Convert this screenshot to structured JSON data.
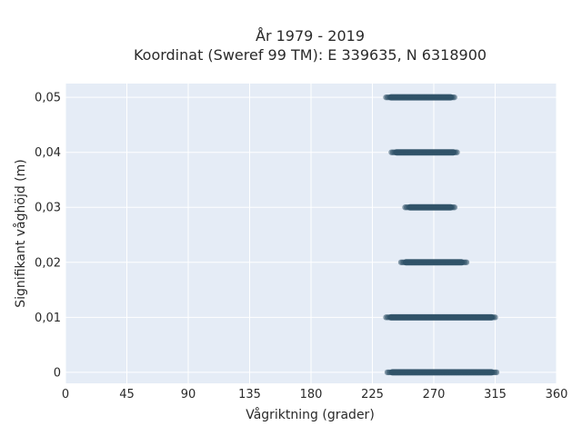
{
  "chart_data": {
    "type": "scatter",
    "title_line1": "År 1979 - 2019",
    "title_line2": "Koordinat (Sweref 99 TM): E 339635, N 6318900",
    "xlabel": "Vågriktning (grader)",
    "ylabel": "Signifikant våghöjd (m)",
    "xlim": [
      0,
      360
    ],
    "ylim": [
      -0.002,
      0.0525
    ],
    "xticks": [
      0,
      45,
      90,
      135,
      180,
      225,
      270,
      315,
      360
    ],
    "xtick_labels": [
      "0",
      "45",
      "90",
      "135",
      "180",
      "225",
      "270",
      "315",
      "360"
    ],
    "yticks": [
      0,
      0.01,
      0.02,
      0.03,
      0.04,
      0.05
    ],
    "ytick_labels": [
      "0",
      "0,01",
      "0,02",
      "0,03",
      "0,04",
      "0,05"
    ],
    "grid": true,
    "marker_color": "#2f5268",
    "background_color": "#e5ecf6",
    "bands": [
      {
        "y": 0,
        "x_min": 236,
        "x_max": 316
      },
      {
        "y": 0.01,
        "x_min": 235,
        "x_max": 316
      },
      {
        "y": 0.02,
        "x_min": 246,
        "x_max": 294
      },
      {
        "y": 0.03,
        "x_min": 249,
        "x_max": 286
      },
      {
        "y": 0.04,
        "x_min": 239,
        "x_max": 288
      },
      {
        "y": 0.05,
        "x_min": 235,
        "x_max": 286
      }
    ]
  }
}
